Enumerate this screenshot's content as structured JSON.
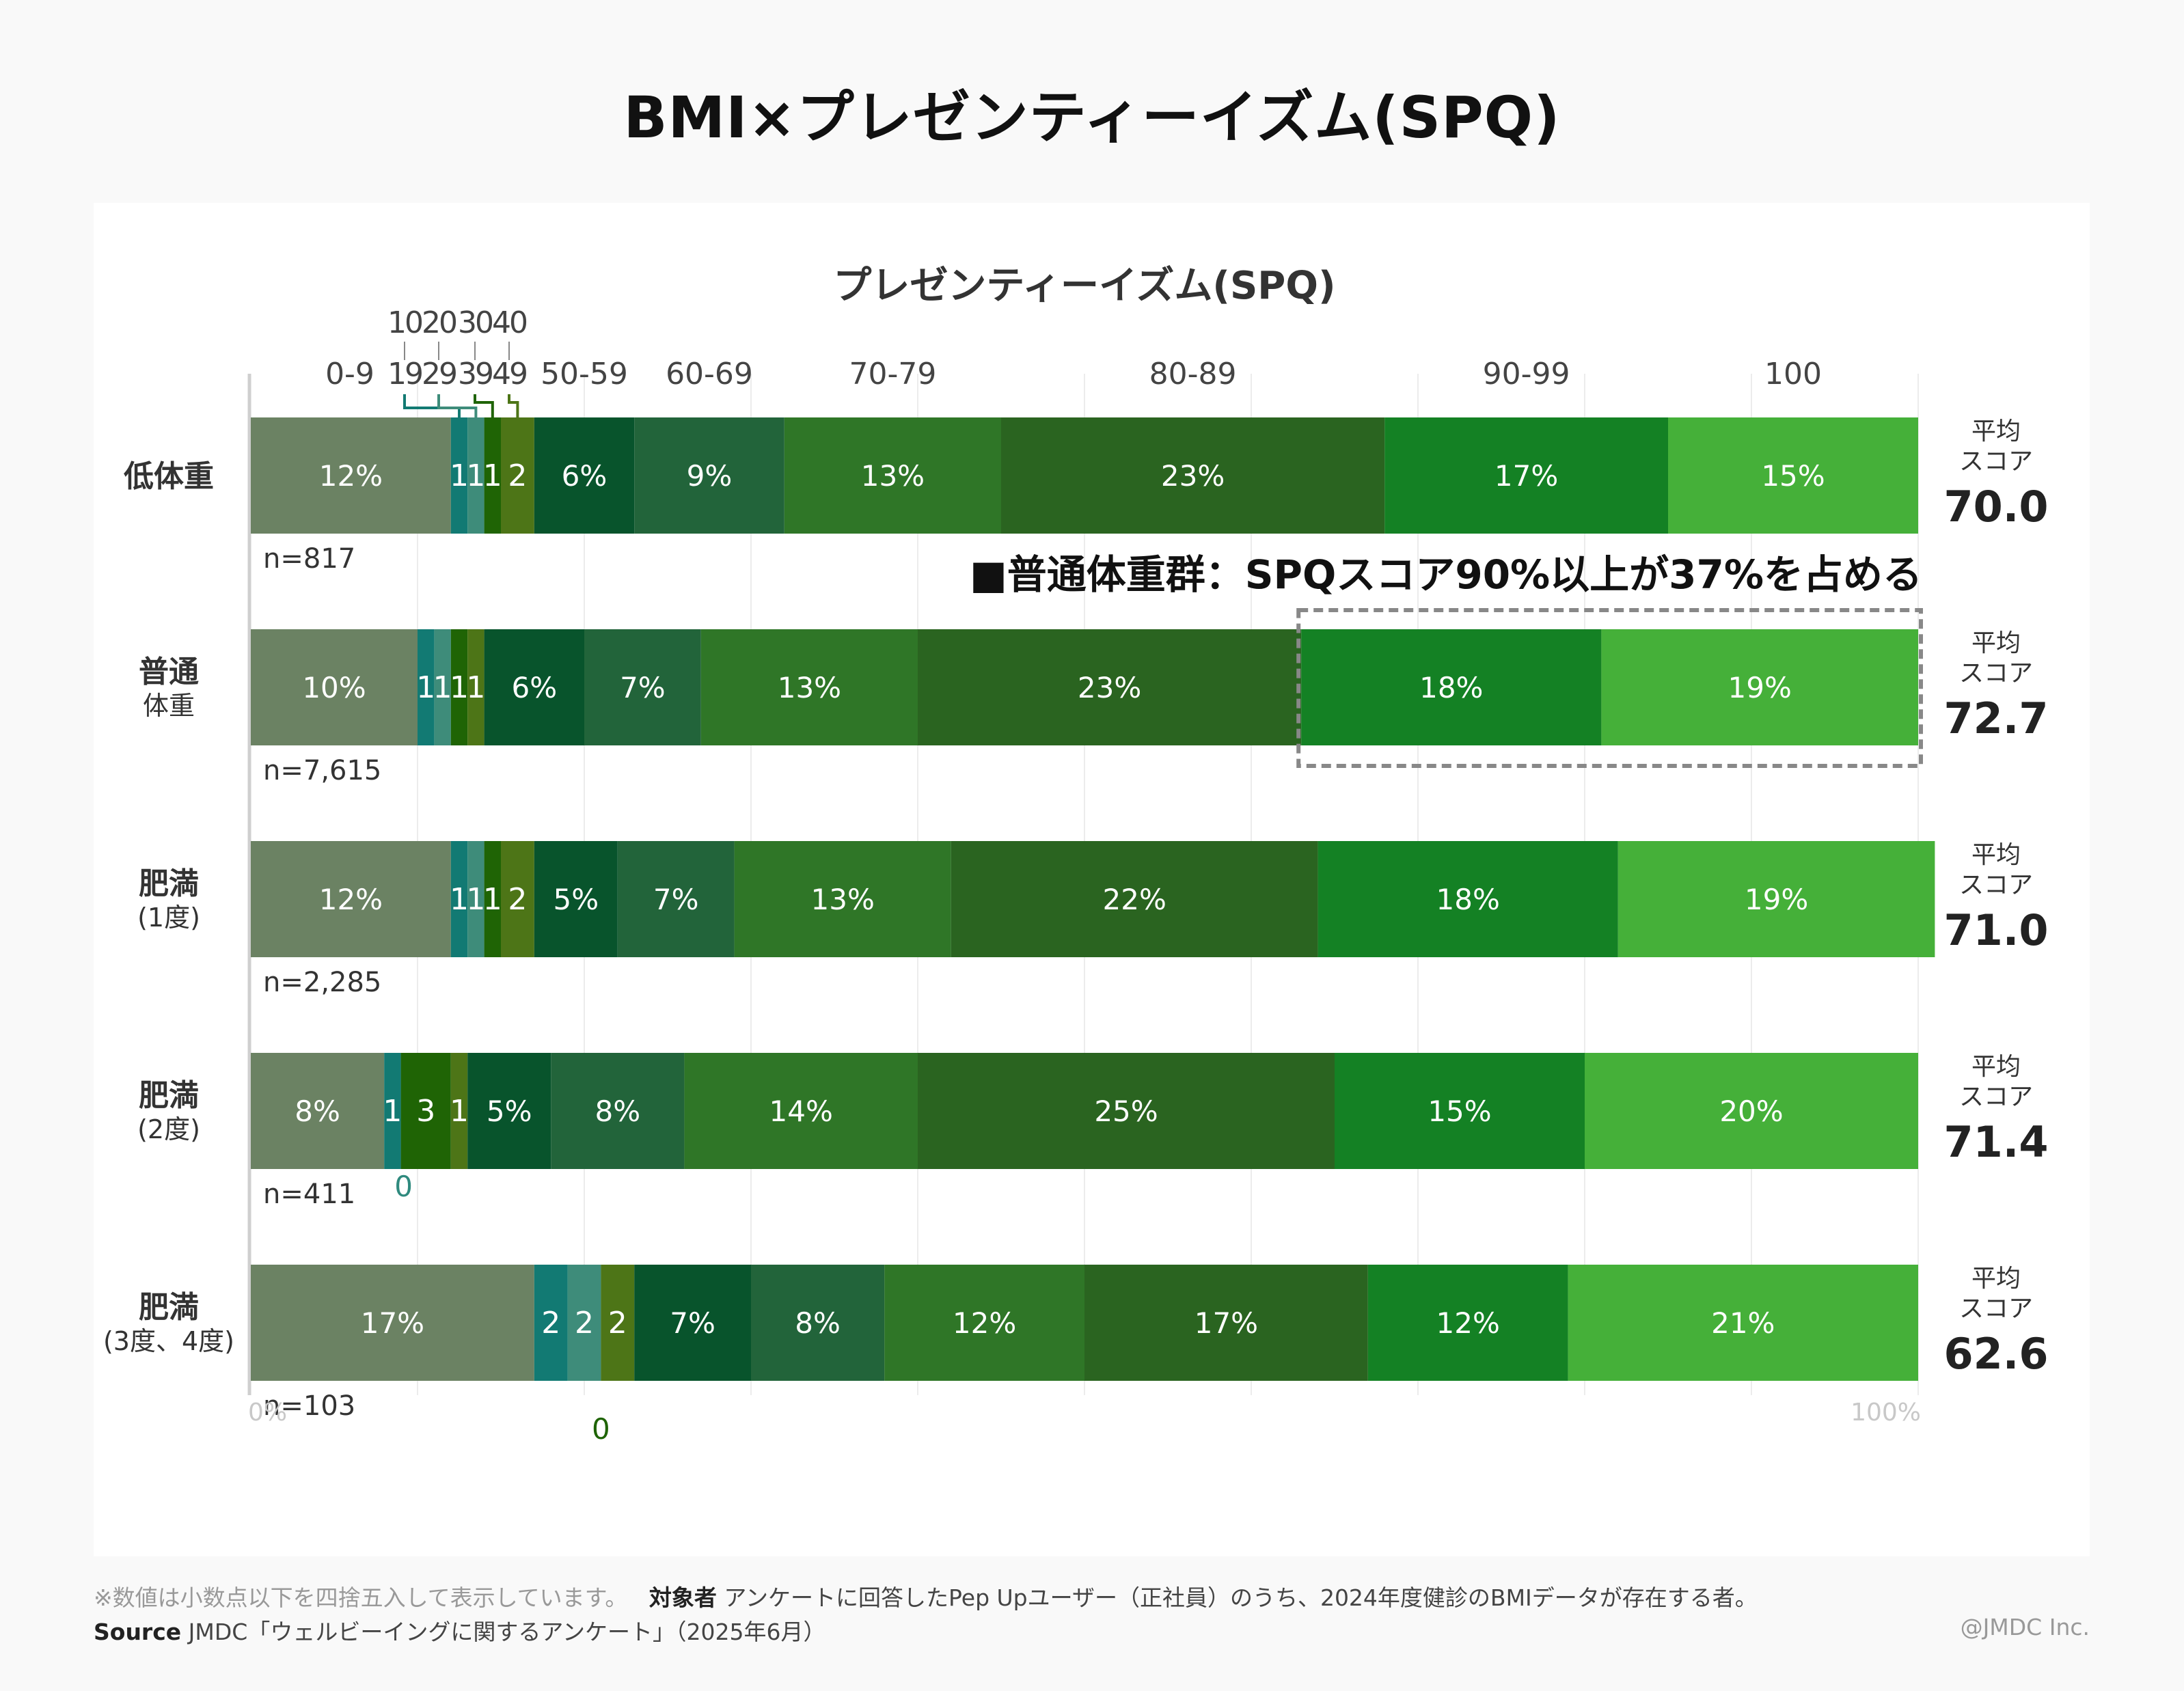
{
  "title": "BMI×プレゼンティーイズム(SPQ)",
  "chart_data": {
    "type": "bar",
    "orientation": "horizontal-stacked-100",
    "title": "プレゼンティーイズム(SPQ)",
    "xlabel": "",
    "ylabel": "",
    "xlim": [
      0,
      100
    ],
    "x_tick_labels": [
      "0%",
      "100%"
    ],
    "grid": true,
    "category_labels": [
      {
        "name": "0-9",
        "top": "",
        "bottom": "0-9"
      },
      {
        "name": "10-19",
        "top": "10",
        "bottom": "19"
      },
      {
        "name": "20-29",
        "top": "20",
        "bottom": "29"
      },
      {
        "name": "30-39",
        "top": "30",
        "bottom": "39"
      },
      {
        "name": "40-49",
        "top": "40",
        "bottom": "49"
      },
      {
        "name": "50-59",
        "top": "",
        "bottom": "50-59"
      },
      {
        "name": "60-69",
        "top": "",
        "bottom": "60-69"
      },
      {
        "name": "70-79",
        "top": "",
        "bottom": "70-79"
      },
      {
        "name": "80-89",
        "top": "",
        "bottom": "80-89"
      },
      {
        "name": "90-99",
        "top": "",
        "bottom": "90-99"
      },
      {
        "name": "100",
        "top": "",
        "bottom": "100"
      }
    ],
    "segment_colors": [
      "#6b8263",
      "#127a73",
      "#3e8c7a",
      "#1f6405",
      "#4d7517",
      "#08542c",
      "#22643a",
      "#2f7627",
      "#2a6420",
      "#148124",
      "#45b039"
    ],
    "groups": [
      {
        "label_lines": [
          "低体重"
        ],
        "n": "n=817",
        "avg_label": [
          "平均",
          "スコア"
        ],
        "avg": "70.0",
        "values": [
          12,
          1,
          1,
          1,
          2,
          6,
          9,
          13,
          23,
          17,
          15
        ],
        "labels": [
          "12%",
          "1",
          "1",
          "1",
          "2",
          "6%",
          "9%",
          "13%",
          "23%",
          "17%",
          "15%"
        ]
      },
      {
        "label_lines": [
          "普通",
          "体重"
        ],
        "n": "n=7,615",
        "avg_label": [
          "平均",
          "スコア"
        ],
        "avg": "72.7",
        "values": [
          10,
          1,
          1,
          1,
          1,
          6,
          7,
          13,
          23,
          18,
          19
        ],
        "labels": [
          "10%",
          "1",
          "1",
          "1",
          "1",
          "6%",
          "7%",
          "13%",
          "23%",
          "18%",
          "19%"
        ]
      },
      {
        "label_lines": [
          "肥満",
          "(1度)"
        ],
        "n": "n=2,285",
        "avg_label": [
          "平均",
          "スコア"
        ],
        "avg": "71.0",
        "values": [
          12,
          1,
          1,
          1,
          2,
          5,
          7,
          13,
          22,
          18,
          19
        ],
        "labels": [
          "12%",
          "1",
          "1",
          "1",
          "2",
          "5%",
          "7%",
          "13%",
          "22%",
          "18%",
          "19%"
        ]
      },
      {
        "label_lines": [
          "肥満",
          "(2度)"
        ],
        "n": "n=411",
        "avg_label": [
          "平均",
          "スコア"
        ],
        "avg": "71.4",
        "values": [
          8,
          1,
          0,
          3,
          1,
          5,
          8,
          14,
          25,
          15,
          20
        ],
        "labels": [
          "8%",
          "1",
          "0",
          "3",
          "1",
          "5%",
          "8%",
          "14%",
          "25%",
          "15%",
          "20%"
        ],
        "outside_labels": [
          {
            "index": 2,
            "text": "0",
            "color": "#2f8a7e"
          }
        ]
      },
      {
        "label_lines": [
          "肥満",
          "(3度、4度)"
        ],
        "n": "n=103",
        "avg_label": [
          "平均",
          "スコア"
        ],
        "avg": "62.6",
        "values": [
          17,
          2,
          2,
          0,
          2,
          7,
          8,
          12,
          17,
          12,
          21
        ],
        "labels": [
          "17%",
          "2",
          "2",
          "0",
          "2",
          "7%",
          "8%",
          "12%",
          "17%",
          "12%",
          "21%"
        ],
        "outside_labels": [
          {
            "index": 3,
            "text": "0",
            "color": "#1f6405"
          }
        ]
      }
    ],
    "annotation": {
      "text": "■普通体重群：SPQスコア90%以上が37%を占める",
      "group_index": 1,
      "highlight_from_segment": 9,
      "highlight_to_segment": 10
    }
  },
  "footer": {
    "note": "※数値は小数点以下を四捨五入して表示しています。",
    "target_label": "対象者",
    "target_text": "アンケートに回答したPep Upユーザー（正社員）のうち、2024年度健診のBMIデータが存在する者。",
    "source_label": "Source",
    "source_text": "JMDC「ウェルビーイングに関するアンケート」（2025年6月）",
    "copyright": "@JMDC Inc."
  }
}
